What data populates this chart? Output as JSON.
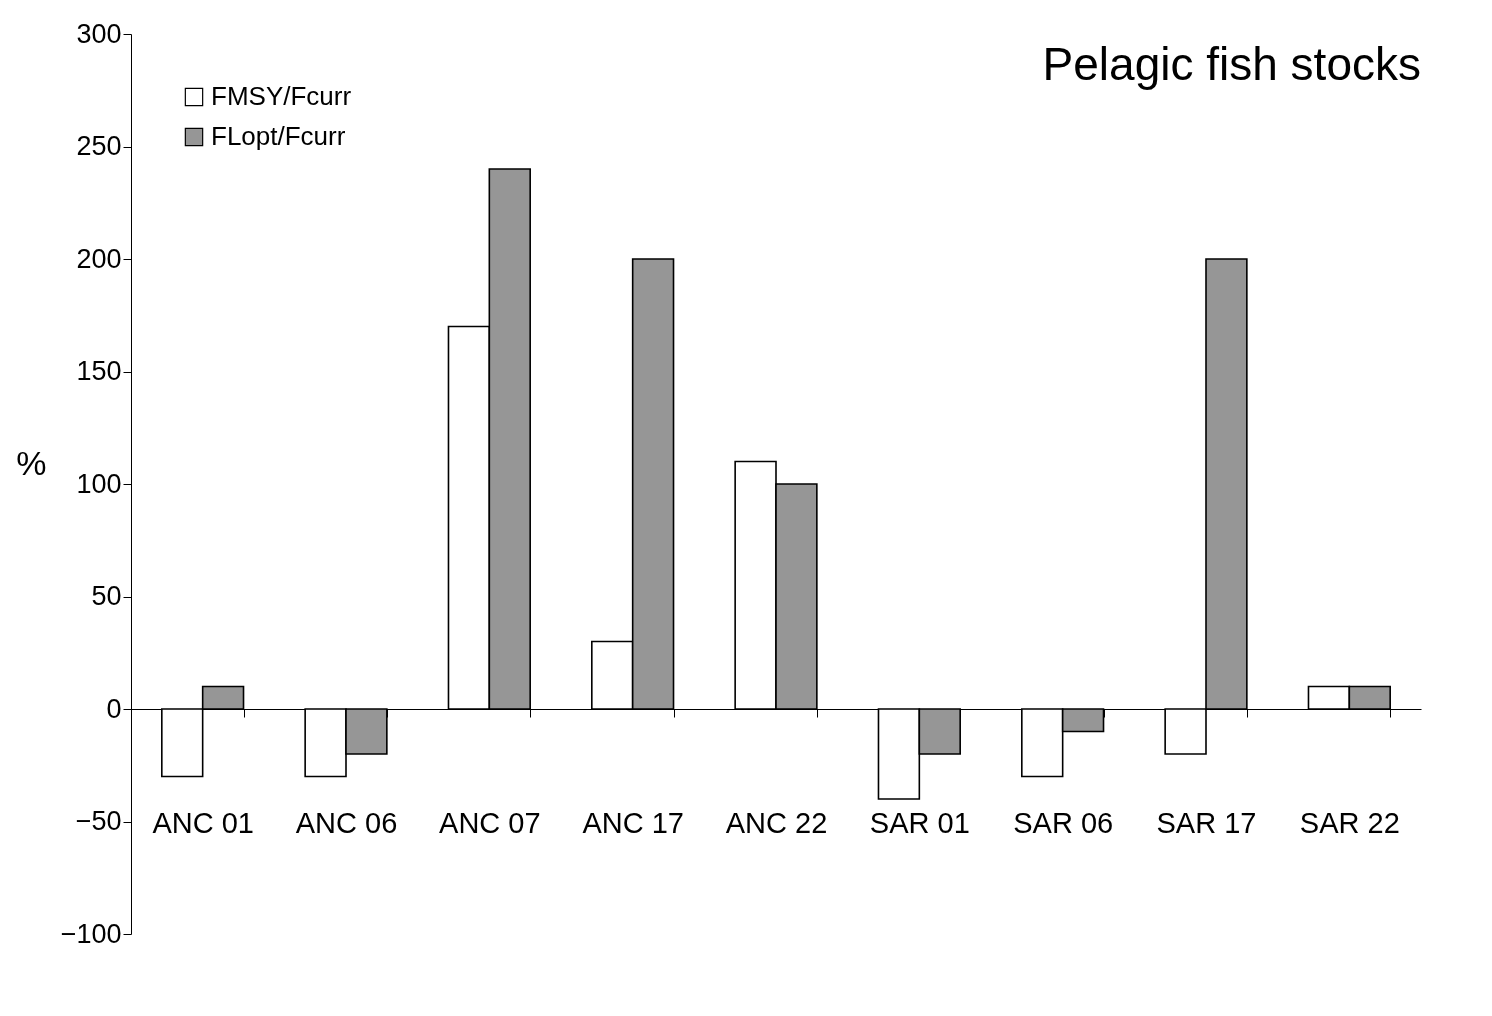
{
  "chart_data": {
    "type": "bar",
    "title": "Pelagic fish stocks",
    "ylabel": "%",
    "categories": [
      "ANC 01",
      "ANC 06",
      "ANC 07",
      "ANC 17",
      "ANC 22",
      "SAR 01",
      "SAR 06",
      "SAR 17",
      "SAR 22"
    ],
    "series": [
      {
        "name": "FMSY/Fcurr",
        "color": "#ffffff",
        "values": [
          -30,
          -30,
          170,
          30,
          110,
          -40,
          -30,
          -20,
          10
        ]
      },
      {
        "name": "FLopt/Fcurr",
        "color": "#969696",
        "values": [
          10,
          -20,
          240,
          200,
          100,
          -20,
          -10,
          200,
          10
        ]
      }
    ],
    "ylim": [
      -100,
      300
    ],
    "yticks": [
      -100,
      -50,
      0,
      50,
      100,
      150,
      200,
      250,
      300
    ],
    "legend": "top left"
  }
}
